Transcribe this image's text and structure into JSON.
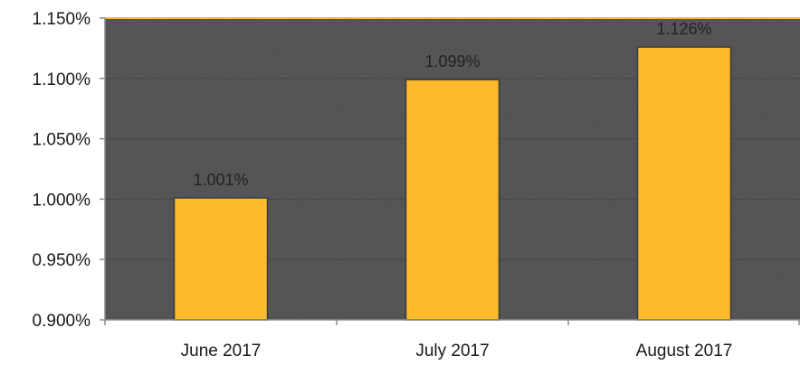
{
  "chart_data": {
    "type": "bar",
    "categories": [
      "June 2017",
      "July 2017",
      "August 2017"
    ],
    "values": [
      1.001,
      1.099,
      1.126
    ],
    "data_labels": [
      "1.001%",
      "1.099%",
      "1.126%"
    ],
    "ylim": [
      0.9,
      1.15
    ],
    "yticks": [
      0.9,
      0.95,
      1.0,
      1.05,
      1.1,
      1.15
    ],
    "ytick_labels": [
      "0.900%",
      "0.950%",
      "1.000%",
      "1.050%",
      "1.100%",
      "1.150%"
    ],
    "grid": true,
    "legend": "none",
    "colors": {
      "bar": "#FDBA2C",
      "bar_outline": "#3a3a3a",
      "plot_background": "#5d5d5d",
      "gridline": "#4a4a4a",
      "axis": "#8a8a8a"
    }
  }
}
